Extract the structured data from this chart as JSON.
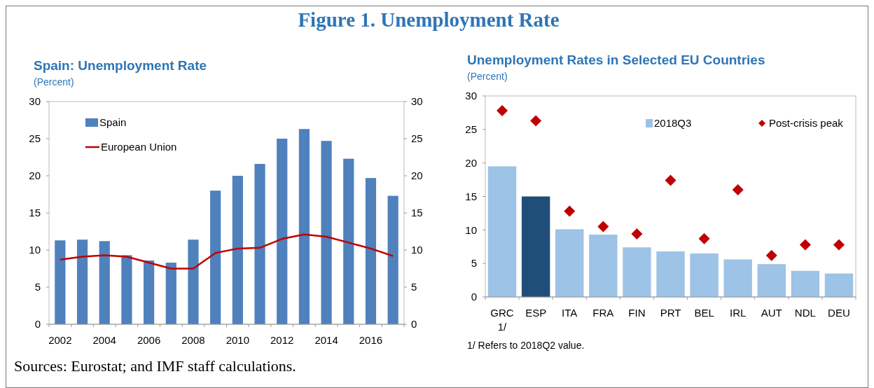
{
  "chart_data": [
    {
      "type": "other",
      "title": "Figure 1. Unemployment Rate",
      "annotations": [
        "Sources: Eurostat; and IMF staff calculations."
      ]
    },
    {
      "type": "bar",
      "title": "Spain: Unemployment Rate",
      "subtitle": "(Percent)",
      "categories": [
        "2002",
        null,
        "2004",
        null,
        "2006",
        null,
        "2008",
        null,
        "2010",
        null,
        "2012",
        null,
        "2014",
        null,
        "2016",
        null
      ],
      "series": [
        {
          "name": "Spain",
          "color": "#4f81bd",
          "values": [
            11.3,
            11.4,
            11.2,
            9.3,
            8.6,
            8.3,
            11.4,
            18.0,
            20.0,
            21.6,
            25.0,
            26.3,
            24.7,
            22.3,
            19.7,
            17.3
          ]
        },
        {
          "type": "line",
          "name": "European Union",
          "color": "#c00000",
          "values": [
            8.7,
            9.1,
            9.3,
            9.1,
            8.3,
            7.5,
            7.5,
            9.6,
            10.2,
            10.3,
            11.5,
            12.1,
            11.8,
            11.0,
            10.2,
            9.2
          ]
        }
      ],
      "ylim": [
        0,
        30
      ],
      "yticks": [
        0,
        5,
        10,
        15,
        20,
        25,
        30
      ],
      "y2lim": [
        0,
        30
      ],
      "y2ticks": [
        0,
        5,
        10,
        15,
        20,
        25,
        30
      ],
      "legend": "top left",
      "line_style": "solid"
    },
    {
      "type": "bar",
      "title": "Unemployment Rates in Selected EU Countries",
      "subtitle": "(Percent)",
      "categories": [
        "GRC\n1/",
        "ESP",
        "ITA",
        "FRA",
        "FIN",
        "PRT",
        "BEL",
        "IRL",
        "AUT",
        "NDL",
        "DEU"
      ],
      "series": [
        {
          "name": "2018Q3",
          "color": "#9dc3e6",
          "colors": [
            "#9dc3e6",
            "#1f4e79",
            "#9dc3e6",
            "#9dc3e6",
            "#9dc3e6",
            "#9dc3e6",
            "#9dc3e6",
            "#9dc3e6",
            "#9dc3e6",
            "#9dc3e6",
            "#9dc3e6"
          ],
          "values": [
            19.5,
            15.0,
            10.1,
            9.3,
            7.4,
            6.8,
            6.5,
            5.6,
            4.9,
            3.9,
            3.5
          ]
        },
        {
          "type": "scatter",
          "name": "Post-crisis peak",
          "color": "#c00000",
          "values": [
            27.8,
            26.3,
            12.8,
            10.5,
            9.4,
            17.4,
            8.7,
            16.0,
            6.2,
            7.8,
            7.8
          ]
        }
      ],
      "ylim": [
        0,
        30
      ],
      "yticks": [
        0,
        5,
        10,
        15,
        20,
        25,
        30
      ],
      "legend": "top right",
      "marker": "diamond",
      "annotations": [
        "1/ Refers to 2018Q2 value."
      ]
    }
  ]
}
